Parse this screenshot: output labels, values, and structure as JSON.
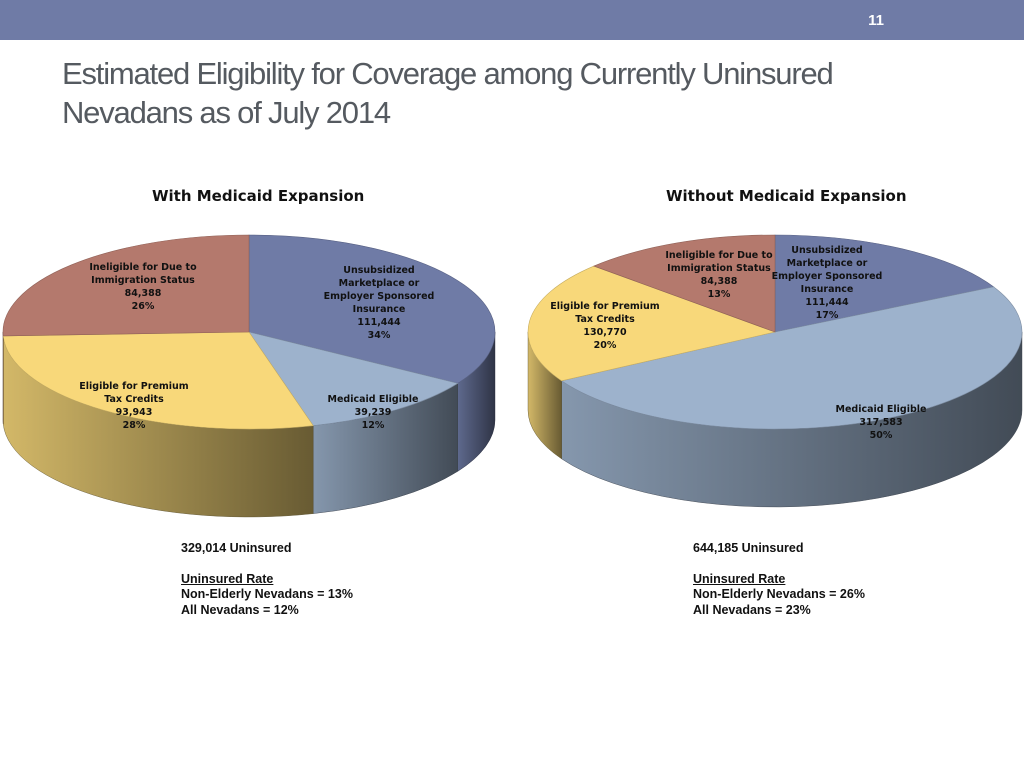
{
  "page": {
    "number": "11",
    "title_line1": "Estimated Eligibility for Coverage among Currently Uninsured",
    "title_line2": "Nevadans as of July 2014"
  },
  "colors": {
    "topbar": "#6f7ba6",
    "slate": "#6f7ba6",
    "lightblue": "#9db2cc",
    "yellow": "#f8d87a",
    "rose": "#b4796d"
  },
  "chart_data": [
    {
      "type": "pie",
      "title": "With Medicaid Expansion",
      "series": [
        {
          "name": "Unsubsidized Marketplace or Employer Sponsored Insurance",
          "label_lines": [
            "Unsubsidized",
            "Marketplace or",
            "Employer Sponsored",
            "Insurance",
            "111,444",
            "34%"
          ],
          "value": 111444,
          "percent": 34,
          "color": "slate"
        },
        {
          "name": "Medicaid Eligible",
          "label_lines": [
            "Medicaid Eligible",
            "39,239",
            "12%"
          ],
          "value": 39239,
          "percent": 12,
          "color": "lightblue"
        },
        {
          "name": "Eligible for Premium Tax Credits",
          "label_lines": [
            "Eligible for Premium",
            "Tax Credits",
            "93,943",
            "28%"
          ],
          "value": 93943,
          "percent": 28,
          "color": "yellow"
        },
        {
          "name": "Ineligible for Due to Immigration Status",
          "label_lines": [
            "Ineligible for Due to",
            "Immigration Status",
            "84,388",
            "26%"
          ],
          "value": 84388,
          "percent": 26,
          "color": "rose"
        }
      ],
      "summary": {
        "total": "329,014 Uninsured",
        "rate_heading": "Uninsured Rate",
        "rate_line1": "Non-Elderly Nevadans = 13%",
        "rate_line2": "All Nevadans = 12%"
      }
    },
    {
      "type": "pie",
      "title": "Without Medicaid Expansion",
      "series": [
        {
          "name": "Unsubsidized Marketplace or Employer Sponsored Insurance",
          "label_lines": [
            "Unsubsidized",
            "Marketplace or",
            "Employer Sponsored",
            "Insurance",
            "111,444",
            "17%"
          ],
          "value": 111444,
          "percent": 17,
          "color": "slate"
        },
        {
          "name": "Medicaid Eligible",
          "label_lines": [
            "Medicaid Eligible",
            "317,583",
            "50%"
          ],
          "value": 317583,
          "percent": 50,
          "color": "lightblue"
        },
        {
          "name": "Eligible for Premium Tax Credits",
          "label_lines": [
            "Eligible for Premium",
            "Tax Credits",
            "130,770",
            "20%"
          ],
          "value": 130770,
          "percent": 20,
          "color": "yellow"
        },
        {
          "name": "Ineligible for Due to Immigration Status",
          "label_lines": [
            "Ineligible for Due to",
            "Immigration Status",
            "84,388",
            "13%"
          ],
          "value": 84388,
          "percent": 13,
          "color": "rose"
        }
      ],
      "summary": {
        "total": "644,185 Uninsured",
        "rate_heading": "Uninsured Rate",
        "rate_line1": "Non-Elderly Nevadans = 26%",
        "rate_line2": "All Nevadans = 23%"
      }
    }
  ]
}
